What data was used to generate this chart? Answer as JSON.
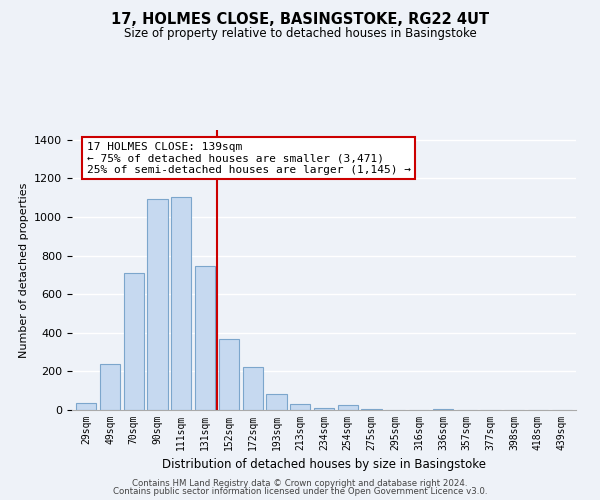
{
  "title": "17, HOLMES CLOSE, BASINGSTOKE, RG22 4UT",
  "subtitle": "Size of property relative to detached houses in Basingstoke",
  "xlabel": "Distribution of detached houses by size in Basingstoke",
  "ylabel": "Number of detached properties",
  "bar_labels": [
    "29sqm",
    "49sqm",
    "70sqm",
    "90sqm",
    "111sqm",
    "131sqm",
    "152sqm",
    "172sqm",
    "193sqm",
    "213sqm",
    "234sqm",
    "254sqm",
    "275sqm",
    "295sqm",
    "316sqm",
    "336sqm",
    "357sqm",
    "377sqm",
    "398sqm",
    "418sqm",
    "439sqm"
  ],
  "bar_values": [
    35,
    240,
    710,
    1095,
    1105,
    745,
    370,
    225,
    85,
    30,
    8,
    25,
    4,
    0,
    0,
    4,
    0,
    0,
    0,
    0,
    0
  ],
  "bar_color": "#c6d9f0",
  "bar_edge_color": "#7ca6cc",
  "vline_x": 5.5,
  "vline_color": "#cc0000",
  "annotation_title": "17 HOLMES CLOSE: 139sqm",
  "annotation_line1": "← 75% of detached houses are smaller (3,471)",
  "annotation_line2": "25% of semi-detached houses are larger (1,145) →",
  "annotation_box_color": "#ffffff",
  "annotation_box_edge": "#cc0000",
  "ylim": [
    0,
    1450
  ],
  "yticks": [
    0,
    200,
    400,
    600,
    800,
    1000,
    1200,
    1400
  ],
  "footer1": "Contains HM Land Registry data © Crown copyright and database right 2024.",
  "footer2": "Contains public sector information licensed under the Open Government Licence v3.0.",
  "bg_color": "#eef2f8"
}
